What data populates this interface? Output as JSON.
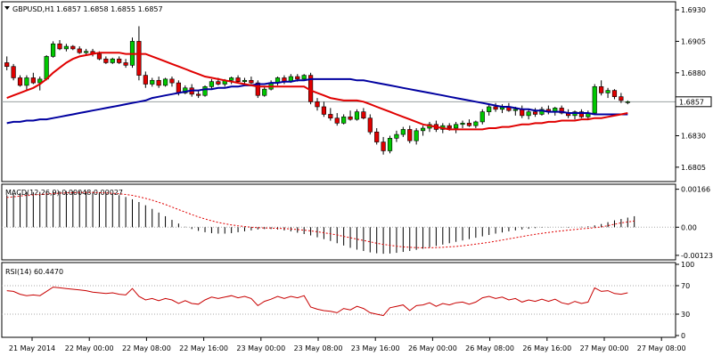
{
  "chart_data": {
    "type": "candlestick",
    "symbol_label": "GBPUSD,H1",
    "ohlc_label": "1.6857 1.6858 1.6855 1.6857",
    "last_price": "1.6857",
    "colors": {
      "bull": "#00c800",
      "bear": "#e00000",
      "ma_fast": "#e00000",
      "ma_slow": "#0000a0",
      "macd_hist": "#000000",
      "macd_signal": "#e00000",
      "rsi": "#c80000"
    },
    "price_axis": {
      "ylim": [
        1.6795,
        1.6935
      ],
      "ticks": [
        "1.6930",
        "1.6905",
        "1.6880",
        "1.6830",
        "1.6805"
      ]
    },
    "x_tick_labels": [
      "21 May 2014",
      "22 May 00:00",
      "22 May 08:00",
      "22 May 16:00",
      "23 May 00:00",
      "23 May 08:00",
      "23 May 16:00",
      "26 May 00:00",
      "26 May 08:00",
      "26 May 16:00",
      "27 May 00:00",
      "27 May 08:00"
    ],
    "candles": [
      [
        1.6888,
        1.6893,
        1.6882,
        1.6885
      ],
      [
        1.6885,
        1.6887,
        1.6874,
        1.6876
      ],
      [
        1.6876,
        1.6878,
        1.6869,
        1.687
      ],
      [
        1.687,
        1.6878,
        1.6866,
        1.6876
      ],
      [
        1.6876,
        1.688,
        1.6871,
        1.6872
      ],
      [
        1.6872,
        1.6877,
        1.6866,
        1.6875
      ],
      [
        1.6875,
        1.6894,
        1.6874,
        1.6893
      ],
      [
        1.6893,
        1.6905,
        1.6892,
        1.6903
      ],
      [
        1.6903,
        1.6906,
        1.6898,
        1.6899
      ],
      [
        1.6899,
        1.6903,
        1.6897,
        1.6901
      ],
      [
        1.6901,
        1.6902,
        1.6898,
        1.6899
      ],
      [
        1.6899,
        1.6901,
        1.6895,
        1.6896
      ],
      [
        1.6896,
        1.6899,
        1.6894,
        1.6897
      ],
      [
        1.6897,
        1.6899,
        1.6893,
        1.6895
      ],
      [
        1.6895,
        1.6897,
        1.689,
        1.6891
      ],
      [
        1.6891,
        1.6893,
        1.6887,
        1.6888
      ],
      [
        1.6888,
        1.6892,
        1.6887,
        1.6891
      ],
      [
        1.6891,
        1.6893,
        1.6887,
        1.6888
      ],
      [
        1.6888,
        1.6891,
        1.6884,
        1.6886
      ],
      [
        1.6886,
        1.6908,
        1.6884,
        1.6905
      ],
      [
        1.6905,
        1.6917,
        1.6874,
        1.6878
      ],
      [
        1.6878,
        1.6881,
        1.6868,
        1.6871
      ],
      [
        1.6871,
        1.6876,
        1.6869,
        1.6874
      ],
      [
        1.6874,
        1.6877,
        1.6868,
        1.687
      ],
      [
        1.687,
        1.6876,
        1.6869,
        1.6875
      ],
      [
        1.6875,
        1.6877,
        1.6869,
        1.6872
      ],
      [
        1.6872,
        1.6874,
        1.6862,
        1.6864
      ],
      [
        1.6864,
        1.687,
        1.6863,
        1.6868
      ],
      [
        1.6868,
        1.6871,
        1.6861,
        1.6863
      ],
      [
        1.6863,
        1.6866,
        1.686,
        1.6862
      ],
      [
        1.6862,
        1.687,
        1.6861,
        1.6869
      ],
      [
        1.6869,
        1.6875,
        1.6867,
        1.6873
      ],
      [
        1.6873,
        1.6876,
        1.687,
        1.6871
      ],
      [
        1.6871,
        1.6875,
        1.6869,
        1.6874
      ],
      [
        1.6874,
        1.6877,
        1.6871,
        1.6876
      ],
      [
        1.6876,
        1.6878,
        1.6872,
        1.6873
      ],
      [
        1.6873,
        1.6876,
        1.687,
        1.6874
      ],
      [
        1.6874,
        1.6877,
        1.6871,
        1.6872
      ],
      [
        1.6872,
        1.6874,
        1.686,
        1.6862
      ],
      [
        1.6862,
        1.6869,
        1.6861,
        1.6867
      ],
      [
        1.6867,
        1.6874,
        1.6866,
        1.6872
      ],
      [
        1.6872,
        1.6877,
        1.687,
        1.6876
      ],
      [
        1.6876,
        1.6878,
        1.6871,
        1.6873
      ],
      [
        1.6873,
        1.6879,
        1.6872,
        1.6877
      ],
      [
        1.6877,
        1.6879,
        1.6873,
        1.6875
      ],
      [
        1.6875,
        1.6879,
        1.6874,
        1.6878
      ],
      [
        1.6878,
        1.688,
        1.6855,
        1.6857
      ],
      [
        1.6857,
        1.686,
        1.685,
        1.6853
      ],
      [
        1.6853,
        1.6857,
        1.6845,
        1.6847
      ],
      [
        1.6847,
        1.6852,
        1.6842,
        1.6844
      ],
      [
        1.6844,
        1.6848,
        1.6838,
        1.684
      ],
      [
        1.684,
        1.6847,
        1.6839,
        1.6845
      ],
      [
        1.6845,
        1.685,
        1.6842,
        1.6843
      ],
      [
        1.6843,
        1.6851,
        1.6842,
        1.6849
      ],
      [
        1.6849,
        1.6852,
        1.6843,
        1.6844
      ],
      [
        1.6844,
        1.6847,
        1.6831,
        1.6833
      ],
      [
        1.6833,
        1.6836,
        1.6823,
        1.6825
      ],
      [
        1.6825,
        1.6829,
        1.6815,
        1.6818
      ],
      [
        1.6818,
        1.683,
        1.6816,
        1.6828
      ],
      [
        1.6828,
        1.6834,
        1.6825,
        1.6831
      ],
      [
        1.6831,
        1.6837,
        1.6829,
        1.6835
      ],
      [
        1.6835,
        1.6838,
        1.6824,
        1.6826
      ],
      [
        1.6826,
        1.6836,
        1.6823,
        1.6834
      ],
      [
        1.6834,
        1.6838,
        1.683,
        1.6836
      ],
      [
        1.6836,
        1.6841,
        1.6833,
        1.6839
      ],
      [
        1.6839,
        1.6842,
        1.6833,
        1.6835
      ],
      [
        1.6835,
        1.684,
        1.6832,
        1.6838
      ],
      [
        1.6838,
        1.684,
        1.6834,
        1.6836
      ],
      [
        1.6836,
        1.6841,
        1.6832,
        1.6839
      ],
      [
        1.6839,
        1.6842,
        1.6836,
        1.684
      ],
      [
        1.684,
        1.6843,
        1.6837,
        1.6838
      ],
      [
        1.6838,
        1.6842,
        1.6836,
        1.6841
      ],
      [
        1.6841,
        1.6851,
        1.6839,
        1.6849
      ],
      [
        1.6849,
        1.6855,
        1.6846,
        1.6853
      ],
      [
        1.6853,
        1.6856,
        1.6849,
        1.6851
      ],
      [
        1.6851,
        1.6855,
        1.6848,
        1.6853
      ],
      [
        1.6853,
        1.6856,
        1.6849,
        1.685
      ],
      [
        1.685,
        1.6853,
        1.6846,
        1.6851
      ],
      [
        1.6851,
        1.6854,
        1.6844,
        1.6846
      ],
      [
        1.6846,
        1.6851,
        1.6843,
        1.6849
      ],
      [
        1.6849,
        1.6852,
        1.6845,
        1.6847
      ],
      [
        1.6847,
        1.6853,
        1.6846,
        1.6851
      ],
      [
        1.6851,
        1.6854,
        1.6847,
        1.6849
      ],
      [
        1.6849,
        1.6853,
        1.6846,
        1.6852
      ],
      [
        1.6852,
        1.6854,
        1.6847,
        1.6848
      ],
      [
        1.6848,
        1.6851,
        1.6844,
        1.6846
      ],
      [
        1.6846,
        1.685,
        1.6843,
        1.6849
      ],
      [
        1.6849,
        1.6851,
        1.6844,
        1.6845
      ],
      [
        1.6845,
        1.685,
        1.6843,
        1.6848
      ],
      [
        1.6848,
        1.6871,
        1.6847,
        1.6869
      ],
      [
        1.6869,
        1.6874,
        1.6862,
        1.6864
      ],
      [
        1.6864,
        1.6868,
        1.686,
        1.6866
      ],
      [
        1.6866,
        1.6867,
        1.6859,
        1.6861
      ],
      [
        1.6861,
        1.6864,
        1.6856,
        1.6858
      ],
      [
        1.6857,
        1.6858,
        1.6855,
        1.6857
      ]
    ],
    "ma_fast": [
      1.686,
      1.6862,
      1.6864,
      1.6866,
      1.6868,
      1.6871,
      1.6875,
      1.688,
      1.6884,
      1.6888,
      1.6891,
      1.6893,
      1.6894,
      1.6895,
      1.6896,
      1.6896,
      1.6896,
      1.6896,
      1.6895,
      1.6895,
      1.6895,
      1.6895,
      1.6893,
      1.6891,
      1.6889,
      1.6887,
      1.6885,
      1.6883,
      1.6881,
      1.6879,
      1.6877,
      1.6876,
      1.6875,
      1.6874,
      1.6873,
      1.6872,
      1.6871,
      1.687,
      1.6869,
      1.6869,
      1.6869,
      1.6869,
      1.6869,
      1.6869,
      1.6869,
      1.6869,
      1.6866,
      1.6864,
      1.6862,
      1.686,
      1.6859,
      1.6858,
      1.6858,
      1.6858,
      1.6857,
      1.6855,
      1.6853,
      1.6851,
      1.6849,
      1.6847,
      1.6845,
      1.6843,
      1.6841,
      1.6839,
      1.6838,
      1.6837,
      1.6836,
      1.6835,
      1.6835,
      1.6835,
      1.6835,
      1.6835,
      1.6835,
      1.6836,
      1.6836,
      1.6837,
      1.6837,
      1.6838,
      1.6839,
      1.6839,
      1.684,
      1.684,
      1.6841,
      1.6841,
      1.6842,
      1.6842,
      1.6842,
      1.6843,
      1.6843,
      1.6844,
      1.6844,
      1.6845,
      1.6846,
      1.6847,
      1.6848
    ],
    "ma_slow": [
      1.684,
      1.6841,
      1.6841,
      1.6842,
      1.6842,
      1.6843,
      1.6843,
      1.6844,
      1.6845,
      1.6846,
      1.6847,
      1.6848,
      1.6849,
      1.685,
      1.6851,
      1.6852,
      1.6853,
      1.6854,
      1.6855,
      1.6856,
      1.6857,
      1.6858,
      1.686,
      1.6861,
      1.6862,
      1.6863,
      1.6864,
      1.6865,
      1.6866,
      1.6866,
      1.6867,
      1.6867,
      1.6868,
      1.6868,
      1.6869,
      1.6869,
      1.687,
      1.687,
      1.6871,
      1.6871,
      1.6872,
      1.6872,
      1.6873,
      1.6873,
      1.6874,
      1.6874,
      1.6875,
      1.6875,
      1.6875,
      1.6875,
      1.6875,
      1.6875,
      1.6875,
      1.6874,
      1.6874,
      1.6873,
      1.6872,
      1.6871,
      1.687,
      1.6869,
      1.6868,
      1.6867,
      1.6866,
      1.6865,
      1.6864,
      1.6863,
      1.6862,
      1.6861,
      1.686,
      1.6859,
      1.6858,
      1.6857,
      1.6856,
      1.6855,
      1.6854,
      1.6853,
      1.6853,
      1.6852,
      1.6851,
      1.6851,
      1.685,
      1.685,
      1.6849,
      1.6849,
      1.6849,
      1.6848,
      1.6848,
      1.6848,
      1.6848,
      1.6847,
      1.6847,
      1.6847,
      1.6847,
      1.6847,
      1.6847
    ],
    "macd": {
      "label": "MACD(12,26,9) 0.00048 0.00027",
      "ylim": [
        -0.00135,
        0.0018
      ],
      "ticks": [
        "0.00166",
        "0.00",
        "-0.00123"
      ],
      "hist": [
        0.0014,
        0.00145,
        0.0015,
        0.00152,
        0.00153,
        0.00154,
        0.00155,
        0.00156,
        0.00157,
        0.00158,
        0.00158,
        0.00158,
        0.00157,
        0.00155,
        0.00153,
        0.0015,
        0.00146,
        0.0014,
        0.00132,
        0.00122,
        0.0011,
        0.00096,
        0.0008,
        0.00064,
        0.00048,
        0.00032,
        0.00016,
        2e-05,
        -8e-05,
        -0.00016,
        -0.00022,
        -0.00026,
        -0.00028,
        -0.00028,
        -0.00026,
        -0.00022,
        -0.00018,
        -0.00014,
        -0.0001,
        -8e-05,
        -8e-05,
        -0.0001,
        -0.00014,
        -0.00018,
        -0.00024,
        -0.0003,
        -0.00036,
        -0.00044,
        -0.00052,
        -0.0006,
        -0.0007,
        -0.0008,
        -0.0009,
        -0.00098,
        -0.00104,
        -0.0011,
        -0.00114,
        -0.00116,
        -0.00115,
        -0.00112,
        -0.00108,
        -0.00104,
        -0.00099,
        -0.00094,
        -0.00088,
        -0.00082,
        -0.00076,
        -0.0007,
        -0.00064,
        -0.00058,
        -0.00052,
        -0.00046,
        -0.0004,
        -0.00034,
        -0.00028,
        -0.00023,
        -0.00018,
        -0.00014,
        -0.0001,
        -7e-05,
        -4e-05,
        -2e-05,
        -1e-05,
        0.0,
        -1e-05,
        -2e-05,
        0.0,
        2e-05,
        4e-05,
        8e-05,
        0.00014,
        0.00022,
        0.0003,
        0.00036,
        0.00042,
        0.00048
      ],
      "signal": [
        0.0013,
        0.00133,
        0.00136,
        0.00139,
        0.00141,
        0.00143,
        0.00145,
        0.00147,
        0.00149,
        0.0015,
        0.00151,
        0.00152,
        0.00152,
        0.00152,
        0.00151,
        0.0015,
        0.00148,
        0.00146,
        0.00143,
        0.00139,
        0.00133,
        0.00126,
        0.00118,
        0.00109,
        0.00099,
        0.00088,
        0.00077,
        0.00066,
        0.00055,
        0.00045,
        0.00036,
        0.00028,
        0.00021,
        0.00015,
        0.0001,
        6e-05,
        3e-05,
        0.0,
        -2e-05,
        -3e-05,
        -4e-05,
        -5e-05,
        -6e-05,
        -8e-05,
        -0.0001,
        -0.00013,
        -0.00016,
        -0.0002,
        -0.00024,
        -0.00029,
        -0.00034,
        -0.0004,
        -0.00046,
        -0.00052,
        -0.00058,
        -0.00064,
        -0.0007,
        -0.00075,
        -0.00079,
        -0.00083,
        -0.00086,
        -0.00088,
        -0.00089,
        -0.0009,
        -0.0009,
        -0.00089,
        -0.00088,
        -0.00086,
        -0.00084,
        -0.00081,
        -0.00078,
        -0.00074,
        -0.0007,
        -0.00066,
        -0.00061,
        -0.00056,
        -0.00051,
        -0.00046,
        -0.00041,
        -0.00036,
        -0.00031,
        -0.00027,
        -0.00023,
        -0.00019,
        -0.00016,
        -0.00013,
        -0.0001,
        -7e-05,
        -5e-05,
        -2e-05,
        1e-05,
        7e-05,
        0.00013,
        0.00019,
        0.00023,
        0.00027
      ]
    },
    "rsi": {
      "label": "RSI(14) 60.4470",
      "ylim": [
        0,
        100
      ],
      "ticks": [
        "100",
        "70",
        "30",
        "0"
      ],
      "levels": [
        70,
        30
      ],
      "values": [
        63,
        62,
        58,
        56,
        57,
        56,
        62,
        68,
        67,
        66,
        65,
        64,
        63,
        61,
        60,
        59,
        60,
        58,
        57,
        66,
        55,
        50,
        52,
        49,
        52,
        50,
        45,
        49,
        45,
        44,
        50,
        54,
        52,
        54,
        56,
        53,
        55,
        52,
        42,
        48,
        51,
        55,
        52,
        55,
        53,
        56,
        40,
        37,
        35,
        34,
        32,
        38,
        36,
        41,
        38,
        32,
        30,
        28,
        39,
        41,
        43,
        35,
        42,
        43,
        46,
        41,
        45,
        43,
        46,
        47,
        44,
        47,
        53,
        55,
        52,
        54,
        50,
        52,
        47,
        50,
        48,
        51,
        48,
        51,
        46,
        44,
        48,
        45,
        47,
        67,
        62,
        63,
        59,
        58,
        60
      ]
    }
  }
}
